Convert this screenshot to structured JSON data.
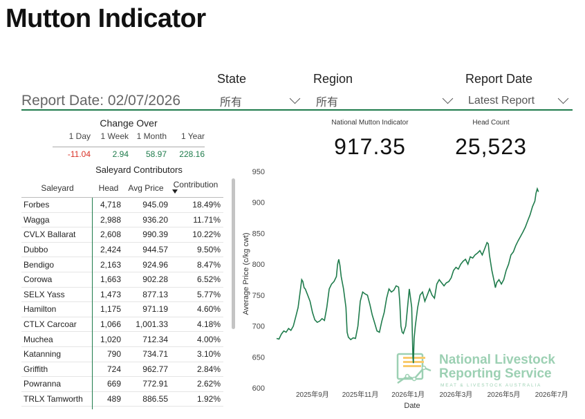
{
  "page": {
    "title": "Mutton Indicator",
    "report_date_label": "Report Date: 02/07/2026"
  },
  "filters": {
    "state": {
      "label": "State",
      "value": "所有"
    },
    "region": {
      "label": "Region",
      "value": "所有"
    },
    "report_date": {
      "label": "Report Date",
      "value": "Latest Report"
    }
  },
  "change_over": {
    "title": "Change Over",
    "periods": [
      "1 Day",
      "1 Week",
      "1 Month",
      "1 Year"
    ],
    "values": [
      "-11.04",
      "2.94",
      "58.97",
      "228.16"
    ]
  },
  "kpis": {
    "indicator": {
      "label": "National Mutton Indicator",
      "value": "917.35"
    },
    "head_count": {
      "label": "Head Count",
      "value": "25,523"
    }
  },
  "saleyards": {
    "title": "Saleyard Contributors",
    "columns": [
      "Saleyard",
      "Head",
      "Avg Price",
      "Contribution"
    ],
    "rows": [
      [
        "Forbes",
        "4,718",
        "945.09",
        "18.49%"
      ],
      [
        "Wagga",
        "2,988",
        "936.20",
        "11.71%"
      ],
      [
        "CVLX Ballarat",
        "2,608",
        "990.39",
        "10.22%"
      ],
      [
        "Dubbo",
        "2,424",
        "944.57",
        "9.50%"
      ],
      [
        "Bendigo",
        "2,163",
        "924.96",
        "8.47%"
      ],
      [
        "Corowa",
        "1,663",
        "902.28",
        "6.52%"
      ],
      [
        "SELX Yass",
        "1,473",
        "877.13",
        "5.77%"
      ],
      [
        "Hamilton",
        "1,175",
        "971.19",
        "4.60%"
      ],
      [
        "CTLX Carcoar",
        "1,066",
        "1,001.33",
        "4.18%"
      ],
      [
        "Muchea",
        "1,020",
        "712.34",
        "4.00%"
      ],
      [
        "Katanning",
        "790",
        "734.71",
        "3.10%"
      ],
      [
        "Griffith",
        "724",
        "962.77",
        "2.84%"
      ],
      [
        "Powranna",
        "669",
        "772.91",
        "2.62%"
      ],
      [
        "TRLX Tamworth",
        "489",
        "886.55",
        "1.92%"
      ]
    ]
  },
  "watermark": {
    "line1": "National Livestock",
    "line2": "Reporting Service",
    "line3": "MEAT & LIVESTOCK AUSTRALIA"
  },
  "colors": {
    "accent": "#1e7b4b",
    "negative": "#d93025",
    "logo_orange": "#f6b93b",
    "logo_green": "#7cc19a"
  },
  "chart_data": {
    "type": "line",
    "xlabel": "Date",
    "ylabel": "Average Price (c/kg cwt)",
    "ylim": [
      600,
      950
    ],
    "yticks": [
      600,
      650,
      700,
      750,
      800,
      850,
      900,
      950
    ],
    "xticks": [
      "2025年9月",
      "2025年11月",
      "2026年1月",
      "2026年3月",
      "2026年5月",
      "2026年7月"
    ],
    "xtick_index": [
      7.5,
      9.5,
      11.5,
      13.5,
      15.5,
      17.5
    ],
    "x_range": [
      6,
      18
    ],
    "series": [
      {
        "values": [
          [
            6.0,
            680
          ],
          [
            6.1,
            679
          ],
          [
            6.2,
            687
          ],
          [
            6.3,
            692
          ],
          [
            6.4,
            690
          ],
          [
            6.5,
            696
          ],
          [
            6.6,
            693
          ],
          [
            6.7,
            700
          ],
          [
            6.8,
            715
          ],
          [
            6.9,
            730
          ],
          [
            7.0,
            760
          ],
          [
            7.05,
            775
          ],
          [
            7.1,
            772
          ],
          [
            7.15,
            762
          ],
          [
            7.2,
            760
          ],
          [
            7.3,
            750
          ],
          [
            7.4,
            740
          ],
          [
            7.5,
            722
          ],
          [
            7.6,
            710
          ],
          [
            7.7,
            706
          ],
          [
            7.8,
            708
          ],
          [
            7.9,
            712
          ],
          [
            8.0,
            709
          ],
          [
            8.1,
            730
          ],
          [
            8.2,
            760
          ],
          [
            8.3,
            768
          ],
          [
            8.4,
            772
          ],
          [
            8.5,
            780
          ],
          [
            8.55,
            800
          ],
          [
            8.6,
            808
          ],
          [
            8.65,
            798
          ],
          [
            8.7,
            780
          ],
          [
            8.8,
            760
          ],
          [
            8.9,
            730
          ],
          [
            8.95,
            690
          ],
          [
            9.0,
            682
          ],
          [
            9.1,
            678
          ],
          [
            9.2,
            681
          ],
          [
            9.3,
            680
          ],
          [
            9.4,
            700
          ],
          [
            9.5,
            740
          ],
          [
            9.6,
            755
          ],
          [
            9.7,
            752
          ],
          [
            9.8,
            750
          ],
          [
            9.9,
            735
          ],
          [
            10.0,
            718
          ],
          [
            10.1,
            705
          ],
          [
            10.2,
            692
          ],
          [
            10.3,
            690
          ],
          [
            10.4,
            708
          ],
          [
            10.5,
            722
          ],
          [
            10.6,
            745
          ],
          [
            10.7,
            760
          ],
          [
            10.8,
            755
          ],
          [
            10.9,
            758
          ],
          [
            11.0,
            765
          ],
          [
            11.1,
            763
          ],
          [
            11.15,
            740
          ],
          [
            11.2,
            700
          ],
          [
            11.25,
            690
          ],
          [
            11.3,
            688
          ],
          [
            11.4,
            700
          ],
          [
            11.45,
            720
          ],
          [
            11.5,
            740
          ],
          [
            11.55,
            760
          ],
          [
            11.6,
            745
          ],
          [
            11.65,
            730
          ],
          [
            11.7,
            650
          ],
          [
            11.72,
            640
          ],
          [
            11.75,
            680
          ],
          [
            11.8,
            700
          ],
          [
            11.9,
            730
          ],
          [
            12.0,
            750
          ],
          [
            12.1,
            755
          ],
          [
            12.2,
            740
          ],
          [
            12.3,
            750
          ],
          [
            12.4,
            760
          ],
          [
            12.5,
            750
          ],
          [
            12.6,
            745
          ],
          [
            12.7,
            768
          ],
          [
            12.8,
            775
          ],
          [
            12.9,
            770
          ],
          [
            13.0,
            765
          ],
          [
            13.1,
            770
          ],
          [
            13.2,
            772
          ],
          [
            13.3,
            778
          ],
          [
            13.4,
            790
          ],
          [
            13.5,
            795
          ],
          [
            13.6,
            792
          ],
          [
            13.7,
            800
          ],
          [
            13.8,
            805
          ],
          [
            13.9,
            808
          ],
          [
            14.0,
            800
          ],
          [
            14.1,
            812
          ],
          [
            14.2,
            810
          ],
          [
            14.3,
            815
          ],
          [
            14.4,
            818
          ],
          [
            14.5,
            822
          ],
          [
            14.6,
            815
          ],
          [
            14.7,
            825
          ],
          [
            14.8,
            835
          ],
          [
            14.85,
            833
          ],
          [
            14.9,
            815
          ],
          [
            15.0,
            790
          ],
          [
            15.1,
            772
          ],
          [
            15.15,
            762
          ],
          [
            15.2,
            770
          ],
          [
            15.3,
            775
          ],
          [
            15.4,
            768
          ],
          [
            15.5,
            775
          ],
          [
            15.6,
            790
          ],
          [
            15.7,
            800
          ],
          [
            15.8,
            815
          ],
          [
            15.9,
            820
          ],
          [
            16.0,
            830
          ],
          [
            16.1,
            838
          ],
          [
            16.2,
            845
          ],
          [
            16.3,
            852
          ],
          [
            16.4,
            860
          ],
          [
            16.5,
            870
          ],
          [
            16.6,
            880
          ],
          [
            16.7,
            893
          ],
          [
            16.8,
            902
          ],
          [
            16.85,
            915
          ],
          [
            16.9,
            922
          ],
          [
            16.95,
            917
          ]
        ]
      }
    ]
  }
}
